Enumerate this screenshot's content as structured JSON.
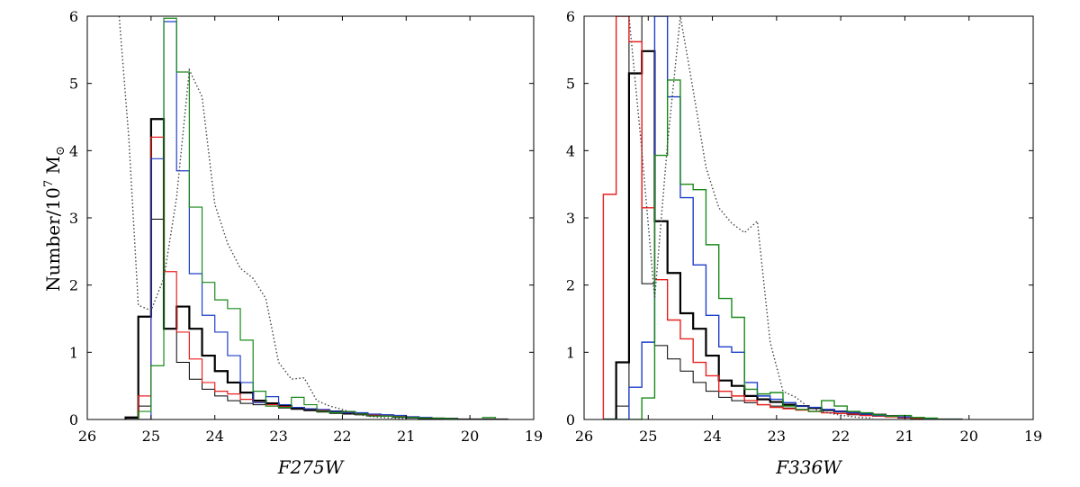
{
  "figure": {
    "ylabel": "Number/10^7 M⊙"
  },
  "chart_data": [
    {
      "type": "histogram",
      "xlabel": "F275W",
      "xlim": [
        26,
        19
      ],
      "ylim": [
        0,
        6
      ],
      "xticks": [
        26,
        25,
        24,
        23,
        22,
        21,
        20,
        19
      ],
      "yticks": [
        0,
        1,
        2,
        3,
        4,
        5,
        6
      ],
      "grid": false,
      "bin_edges": [
        25.4,
        25.2,
        25.0,
        24.8,
        24.6,
        24.4,
        24.2,
        24.0,
        23.8,
        23.6,
        23.4,
        23.2,
        23.0,
        22.8,
        22.6,
        22.4,
        22.2,
        22.0,
        21.8,
        21.6,
        21.4,
        21.2,
        21.0,
        20.8,
        20.6,
        20.4,
        20.2,
        20.0,
        19.8,
        19.6,
        19.4
      ],
      "series": [
        {
          "color": "#000000",
          "style": "step",
          "width": 2.2,
          "values": [
            0.03,
            1.53,
            4.47,
            1.35,
            1.68,
            1.35,
            0.95,
            0.72,
            0.55,
            0.4,
            0.28,
            0.24,
            0.2,
            0.17,
            0.15,
            0.13,
            0.12,
            0.1,
            0.08,
            0.07,
            0.06,
            0.04,
            0.03,
            0.02,
            0.01,
            0.01,
            0,
            0,
            0,
            0
          ]
        },
        {
          "color": "#000000",
          "style": "step",
          "width": 1.0,
          "values": [
            0.02,
            0.2,
            2.98,
            1.35,
            0.85,
            0.6,
            0.45,
            0.35,
            0.28,
            0.24,
            0.22,
            0.2,
            0.17,
            0.15,
            0.13,
            0.11,
            0.09,
            0.08,
            0.07,
            0.06,
            0.05,
            0.04,
            0.03,
            0.02,
            0.01,
            0,
            0,
            0,
            0,
            0
          ]
        },
        {
          "color": "#e8201f",
          "style": "step",
          "width": 1.2,
          "values": [
            0,
            0.35,
            4.2,
            2.2,
            1.3,
            0.9,
            0.55,
            0.42,
            0.38,
            0.3,
            0.25,
            0.22,
            0.19,
            0.18,
            0.16,
            0.14,
            0.12,
            0.1,
            0.08,
            0.07,
            0.06,
            0.05,
            0.04,
            0.03,
            0.02,
            0.01,
            0,
            0,
            0,
            0
          ]
        },
        {
          "color": "#1f3fc8",
          "style": "step",
          "width": 1.2,
          "values": [
            0,
            0,
            3.88,
            5.92,
            3.7,
            2.17,
            1.55,
            1.3,
            0.95,
            0.55,
            0.25,
            0.34,
            0.22,
            0.18,
            0.16,
            0.15,
            0.12,
            0.1,
            0.1,
            0.08,
            0.07,
            0.06,
            0.04,
            0.03,
            0.02,
            0.01,
            0,
            0,
            0,
            0
          ]
        },
        {
          "color": "#1a8a1a",
          "style": "step",
          "width": 1.2,
          "values": [
            0,
            0.12,
            0.8,
            5.97,
            5.17,
            3.16,
            2.04,
            1.78,
            1.65,
            1.18,
            0.42,
            0.2,
            0.18,
            0.33,
            0.22,
            0.12,
            0.1,
            0.12,
            0.08,
            0.05,
            0.05,
            0.04,
            0.03,
            0.02,
            0.02,
            0.01,
            0,
            0,
            0.03,
            0
          ]
        },
        {
          "color": "#444444",
          "style": "dotted",
          "x": [
            25.5,
            25.35,
            25.2,
            25.0,
            24.8,
            24.6,
            24.4,
            24.2,
            24.0,
            23.8,
            23.6,
            23.4,
            23.2,
            23.0,
            22.8,
            22.6,
            22.4,
            22.2,
            22.0,
            21.8,
            21.6,
            21.4,
            21.2,
            21.0
          ],
          "values": [
            6.0,
            4.2,
            1.7,
            1.62,
            2.1,
            3.3,
            5.2,
            4.8,
            3.2,
            2.62,
            2.25,
            2.1,
            1.8,
            0.85,
            0.6,
            0.62,
            0.28,
            0.2,
            0.15,
            0.08,
            0.05,
            0.03,
            0.02,
            0.01
          ]
        }
      ]
    },
    {
      "type": "histogram",
      "xlabel": "F336W",
      "xlim": [
        26,
        19
      ],
      "ylim": [
        0,
        6
      ],
      "xticks": [
        26,
        25,
        24,
        23,
        22,
        21,
        20,
        19
      ],
      "yticks": [
        0,
        1,
        2,
        3,
        4,
        5,
        6
      ],
      "grid": false,
      "bin_edges": [
        25.7,
        25.5,
        25.3,
        25.1,
        24.9,
        24.7,
        24.5,
        24.3,
        24.1,
        23.9,
        23.7,
        23.5,
        23.3,
        23.1,
        22.9,
        22.7,
        22.5,
        22.3,
        22.1,
        21.9,
        21.7,
        21.5,
        21.3,
        21.1,
        20.9,
        20.7,
        20.5,
        20.3,
        20.1
      ],
      "series": [
        {
          "color": "#000000",
          "style": "step",
          "width": 2.2,
          "values": [
            0,
            0.85,
            5.15,
            5.48,
            2.95,
            2.18,
            1.58,
            1.35,
            0.95,
            0.58,
            0.5,
            0.35,
            0.3,
            0.26,
            0.22,
            0.2,
            0.17,
            0.14,
            0.12,
            0.1,
            0.08,
            0.07,
            0.05,
            0.03,
            0.02,
            0.01,
            0,
            0
          ]
        },
        {
          "color": "#000000",
          "style": "step",
          "width": 1.0,
          "values": [
            0,
            0.2,
            6.0,
            2.02,
            1.1,
            0.9,
            0.72,
            0.55,
            0.42,
            0.33,
            0.28,
            0.25,
            0.22,
            0.2,
            0.17,
            0.14,
            0.12,
            0.1,
            0.09,
            0.07,
            0.06,
            0.05,
            0.04,
            0.03,
            0.02,
            0.01,
            0,
            0
          ]
        },
        {
          "color": "#e8201f",
          "style": "step",
          "width": 1.4,
          "values": [
            3.35,
            6.0,
            5.62,
            3.15,
            2.08,
            1.48,
            1.2,
            0.85,
            0.65,
            0.42,
            0.35,
            0.28,
            0.22,
            0.18,
            0.16,
            0.14,
            0.12,
            0.1,
            0.09,
            0.08,
            0.06,
            0.05,
            0.04,
            0.03,
            0.02,
            0.01,
            0,
            0
          ]
        },
        {
          "color": "#1f3fc8",
          "style": "step",
          "width": 1.4,
          "values": [
            0,
            0,
            0.48,
            1.15,
            6.0,
            4.8,
            3.3,
            2.3,
            1.55,
            1.08,
            1.0,
            0.55,
            0.35,
            0.3,
            0.25,
            0.2,
            0.18,
            0.15,
            0.12,
            0.1,
            0.08,
            0.06,
            0.05,
            0.04,
            0.03,
            0.01,
            0,
            0
          ]
        },
        {
          "color": "#1a8a1a",
          "style": "step",
          "width": 1.4,
          "values": [
            0,
            0,
            0,
            0.32,
            3.93,
            5.05,
            3.5,
            3.42,
            2.6,
            1.8,
            1.52,
            0.45,
            0.38,
            0.4,
            0.2,
            0.15,
            0.12,
            0.28,
            0.2,
            0.12,
            0.1,
            0.07,
            0.05,
            0.06,
            0.03,
            0.02,
            0,
            0
          ]
        },
        {
          "color": "#444444",
          "style": "dotted",
          "x": [
            25.3,
            25.1,
            24.9,
            24.7,
            24.5,
            24.3,
            24.1,
            23.9,
            23.7,
            23.5,
            23.3,
            23.1,
            22.9,
            22.7,
            22.5,
            22.3,
            22.1,
            21.9,
            21.7,
            21.5
          ],
          "values": [
            6.0,
            4.0,
            1.8,
            4.1,
            6.0,
            4.9,
            3.75,
            3.15,
            2.92,
            2.78,
            2.95,
            1.15,
            0.42,
            0.33,
            0.18,
            0.12,
            0.08,
            0.05,
            0.03,
            0.02
          ]
        }
      ]
    }
  ]
}
